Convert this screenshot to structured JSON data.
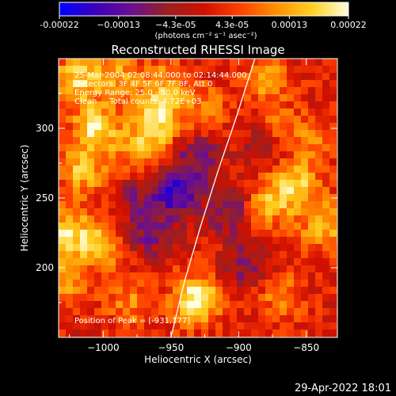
{
  "chart_data": {
    "type": "heatmap",
    "title": "Reconstructed RHESSI Image",
    "xlabel": "Heliocentric X (arcsec)",
    "ylabel": "Heliocentric Y (arcsec)",
    "xlim": [
      -1033,
      -827
    ],
    "ylim": [
      150,
      350
    ],
    "x_ticks": [
      -1000,
      -950,
      -900,
      -850
    ],
    "x_tick_labels": [
      "−1000",
      "−950",
      "−900",
      "−850"
    ],
    "y_ticks": [
      200,
      250,
      300
    ],
    "y_tick_labels": [
      "200",
      "250",
      "300"
    ],
    "colorbar": {
      "range": [
        -0.00022,
        0.00022
      ],
      "ticks": [
        -0.00022,
        -0.00013,
        -4.3e-05,
        4.3e-05,
        0.00013,
        0.00022
      ],
      "tick_labels": [
        "-0.00022",
        "−0.00013",
        "−4.3e-05",
        "4.3e-05",
        "0.00013",
        "0.00022"
      ],
      "units_label": "(photons cm⁻² s⁻¹ asec⁻²)",
      "colormap": [
        "#0000ff",
        "#3b00b8",
        "#6a1090",
        "#9a2020",
        "#d01000",
        "#ff4000",
        "#ff9000",
        "#ffd020",
        "#ffffe0"
      ]
    },
    "annotations": [
      "25-Mar-2004 02:08:44.000 to 02:14:44.000",
      "Detectors: 3F 4F 5F 6F 7F 8F, Att 0",
      "Energy Range: 25.0 - 50.0 keV",
      "Clean     Total counts: 4.72E+03"
    ],
    "peak_label": "Position of Peak = [-931,177]",
    "peak": [
      -931,
      177
    ],
    "limb_curve": [
      [
        -950,
        150
      ],
      [
        -940,
        190
      ],
      [
        -928,
        230
      ],
      [
        -915,
        270
      ],
      [
        -901,
        310
      ],
      [
        -888,
        350
      ]
    ],
    "hotspots": [
      {
        "x": -1020,
        "y": 335,
        "v": 0.00016
      },
      {
        "x": -1005,
        "y": 300,
        "v": 0.00018
      },
      {
        "x": -1015,
        "y": 270,
        "v": 0.00014
      },
      {
        "x": -1025,
        "y": 225,
        "v": 0.00017
      },
      {
        "x": -1000,
        "y": 215,
        "v": 0.00012
      },
      {
        "x": -960,
        "y": 305,
        "v": 0.00018
      },
      {
        "x": -955,
        "y": 330,
        "v": 0.00012
      },
      {
        "x": -975,
        "y": 285,
        "v": 0.0001
      },
      {
        "x": -931,
        "y": 177,
        "v": 0.00022
      },
      {
        "x": -925,
        "y": 315,
        "v": 8e-05
      },
      {
        "x": -880,
        "y": 335,
        "v": 0.0001
      },
      {
        "x": -870,
        "y": 300,
        "v": 9e-05
      },
      {
        "x": -858,
        "y": 258,
        "v": 0.00016
      },
      {
        "x": -880,
        "y": 245,
        "v": 0.00012
      },
      {
        "x": -838,
        "y": 230,
        "v": 0.00013
      },
      {
        "x": -845,
        "y": 290,
        "v": 8e-05
      },
      {
        "x": -980,
        "y": 175,
        "v": 9e-05
      },
      {
        "x": -870,
        "y": 180,
        "v": 8e-05
      },
      {
        "x": -1028,
        "y": 190,
        "v": 0.0001
      },
      {
        "x": -990,
        "y": 340,
        "v": 0.00011
      }
    ],
    "coldspots": [
      {
        "x": -945,
        "y": 255,
        "v": -0.00018
      },
      {
        "x": -965,
        "y": 225,
        "v": -0.00012
      },
      {
        "x": -930,
        "y": 280,
        "v": -0.0001
      },
      {
        "x": -905,
        "y": 240,
        "v": -0.00012
      },
      {
        "x": -895,
        "y": 200,
        "v": -0.0001
      },
      {
        "x": -975,
        "y": 250,
        "v": -8e-05
      },
      {
        "x": -880,
        "y": 290,
        "v": -8e-05
      }
    ]
  },
  "footer": {
    "timestamp": "29-Apr-2022 18:01"
  }
}
